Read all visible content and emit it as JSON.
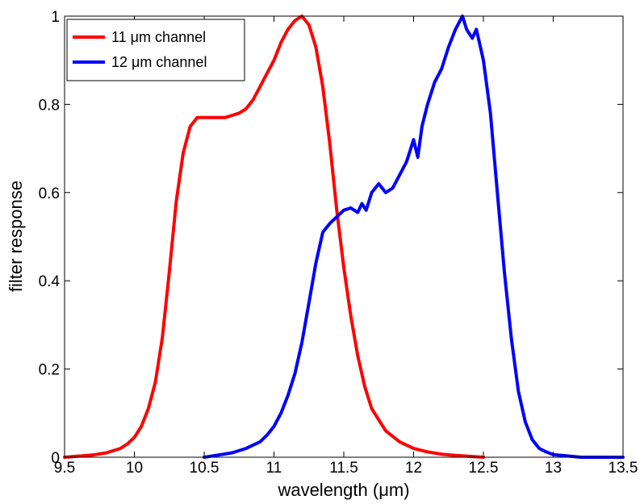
{
  "chart_data": {
    "type": "line",
    "xlabel": "wavelength (μm)",
    "ylabel": "filter response",
    "xlim": [
      9.5,
      13.5
    ],
    "ylim": [
      0,
      1
    ],
    "xticks": [
      "9.5",
      "10",
      "10.5",
      "11",
      "11.5",
      "12",
      "12.5",
      "13",
      "13.5"
    ],
    "yticks": [
      "0",
      "0.2",
      "0.4",
      "0.6",
      "0.8",
      "1"
    ],
    "grid": false,
    "legend_position": "top-left",
    "series": [
      {
        "name": "11 μm channel",
        "color": "#ff0000",
        "x": [
          9.5,
          9.7,
          9.8,
          9.9,
          9.95,
          10.0,
          10.05,
          10.1,
          10.15,
          10.2,
          10.25,
          10.3,
          10.35,
          10.4,
          10.45,
          10.5,
          10.55,
          10.6,
          10.65,
          10.7,
          10.75,
          10.8,
          10.85,
          10.9,
          10.95,
          11.0,
          11.05,
          11.1,
          11.15,
          11.2,
          11.25,
          11.3,
          11.35,
          11.4,
          11.45,
          11.5,
          11.55,
          11.6,
          11.65,
          11.7,
          11.8,
          11.9,
          12.0,
          12.1,
          12.2,
          12.3,
          12.4,
          12.5
        ],
        "y": [
          0.0,
          0.005,
          0.01,
          0.02,
          0.03,
          0.045,
          0.07,
          0.11,
          0.17,
          0.27,
          0.42,
          0.58,
          0.69,
          0.75,
          0.77,
          0.77,
          0.77,
          0.77,
          0.77,
          0.775,
          0.78,
          0.79,
          0.81,
          0.84,
          0.87,
          0.9,
          0.94,
          0.97,
          0.99,
          1.0,
          0.98,
          0.93,
          0.84,
          0.71,
          0.56,
          0.43,
          0.32,
          0.23,
          0.16,
          0.11,
          0.06,
          0.035,
          0.02,
          0.012,
          0.007,
          0.004,
          0.002,
          0.0
        ]
      },
      {
        "name": "12 μm channel",
        "color": "#0000ff",
        "x": [
          10.5,
          10.6,
          10.7,
          10.8,
          10.9,
          10.95,
          11.0,
          11.05,
          11.1,
          11.15,
          11.2,
          11.25,
          11.3,
          11.35,
          11.4,
          11.45,
          11.5,
          11.55,
          11.6,
          11.63,
          11.66,
          11.7,
          11.75,
          11.8,
          11.85,
          11.9,
          11.95,
          12.0,
          12.03,
          12.06,
          12.1,
          12.15,
          12.2,
          12.25,
          12.3,
          12.35,
          12.38,
          12.42,
          12.45,
          12.5,
          12.55,
          12.6,
          12.65,
          12.7,
          12.75,
          12.8,
          12.85,
          12.9,
          12.95,
          13.0,
          13.1,
          13.2,
          13.5
        ],
        "y": [
          0.0,
          0.005,
          0.01,
          0.02,
          0.035,
          0.05,
          0.07,
          0.1,
          0.14,
          0.19,
          0.26,
          0.35,
          0.44,
          0.51,
          0.53,
          0.545,
          0.56,
          0.565,
          0.555,
          0.575,
          0.56,
          0.6,
          0.62,
          0.6,
          0.61,
          0.64,
          0.67,
          0.72,
          0.68,
          0.75,
          0.8,
          0.85,
          0.88,
          0.93,
          0.97,
          1.0,
          0.97,
          0.95,
          0.97,
          0.9,
          0.78,
          0.6,
          0.42,
          0.27,
          0.15,
          0.08,
          0.04,
          0.02,
          0.012,
          0.006,
          0.003,
          0.0,
          0.0
        ]
      }
    ]
  }
}
